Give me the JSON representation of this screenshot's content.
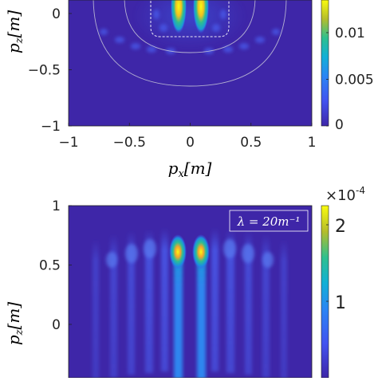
{
  "chart_data": [
    {
      "type": "heatmap",
      "title": "",
      "xlabel": "p_x[m]",
      "ylabel": "p_z[m]",
      "xlim": [
        -1,
        1
      ],
      "ylim": [
        -1,
        0.12
      ],
      "x_ticks": [
        "-1",
        "-0.5",
        "0",
        "0.5",
        "1"
      ],
      "y_ticks": [
        "0",
        "-0.5",
        "-1"
      ],
      "colorbar": {
        "range": [
          0,
          0.0135
        ],
        "tick_labels": [
          "0.01",
          "0.005",
          "0"
        ]
      },
      "features": [
        {
          "kind": "peak",
          "x": -0.09,
          "z": -0.02,
          "value": 0.0135
        },
        {
          "kind": "peak",
          "x": 0.09,
          "z": -0.02,
          "value": 0.0135
        },
        {
          "kind": "boundary-dashed",
          "shape": "rounded-rectangle",
          "x_range": [
            -0.35,
            0.35
          ],
          "z_range": [
            -0.25,
            0.12
          ]
        },
        {
          "kind": "boundary-solid",
          "shape": "arc",
          "radius": 0.79
        },
        {
          "kind": "boundary-solid",
          "shape": "arc",
          "radius": 0.52
        }
      ]
    },
    {
      "type": "heatmap",
      "title": "",
      "annotation": "λ = 20m⁻¹",
      "xlabel": "",
      "ylabel": "p_z[m]",
      "ylim": [
        -0.45,
        1
      ],
      "y_ticks": [
        "1",
        "0.5",
        "0"
      ],
      "colorbar": {
        "range": [
          0,
          2
        ],
        "tick_labels": [
          "2",
          "1"
        ],
        "exponent_label": "×10-4"
      },
      "features": [
        {
          "kind": "peak",
          "x": -0.09,
          "z": 0.64,
          "value": 2.0
        },
        {
          "kind": "peak",
          "x": 0.09,
          "z": 0.64,
          "value": 2.0
        },
        {
          "kind": "streak",
          "x": -0.09,
          "value": 1.1
        },
        {
          "kind": "streak",
          "x": 0.09,
          "value": 1.1
        }
      ]
    }
  ]
}
